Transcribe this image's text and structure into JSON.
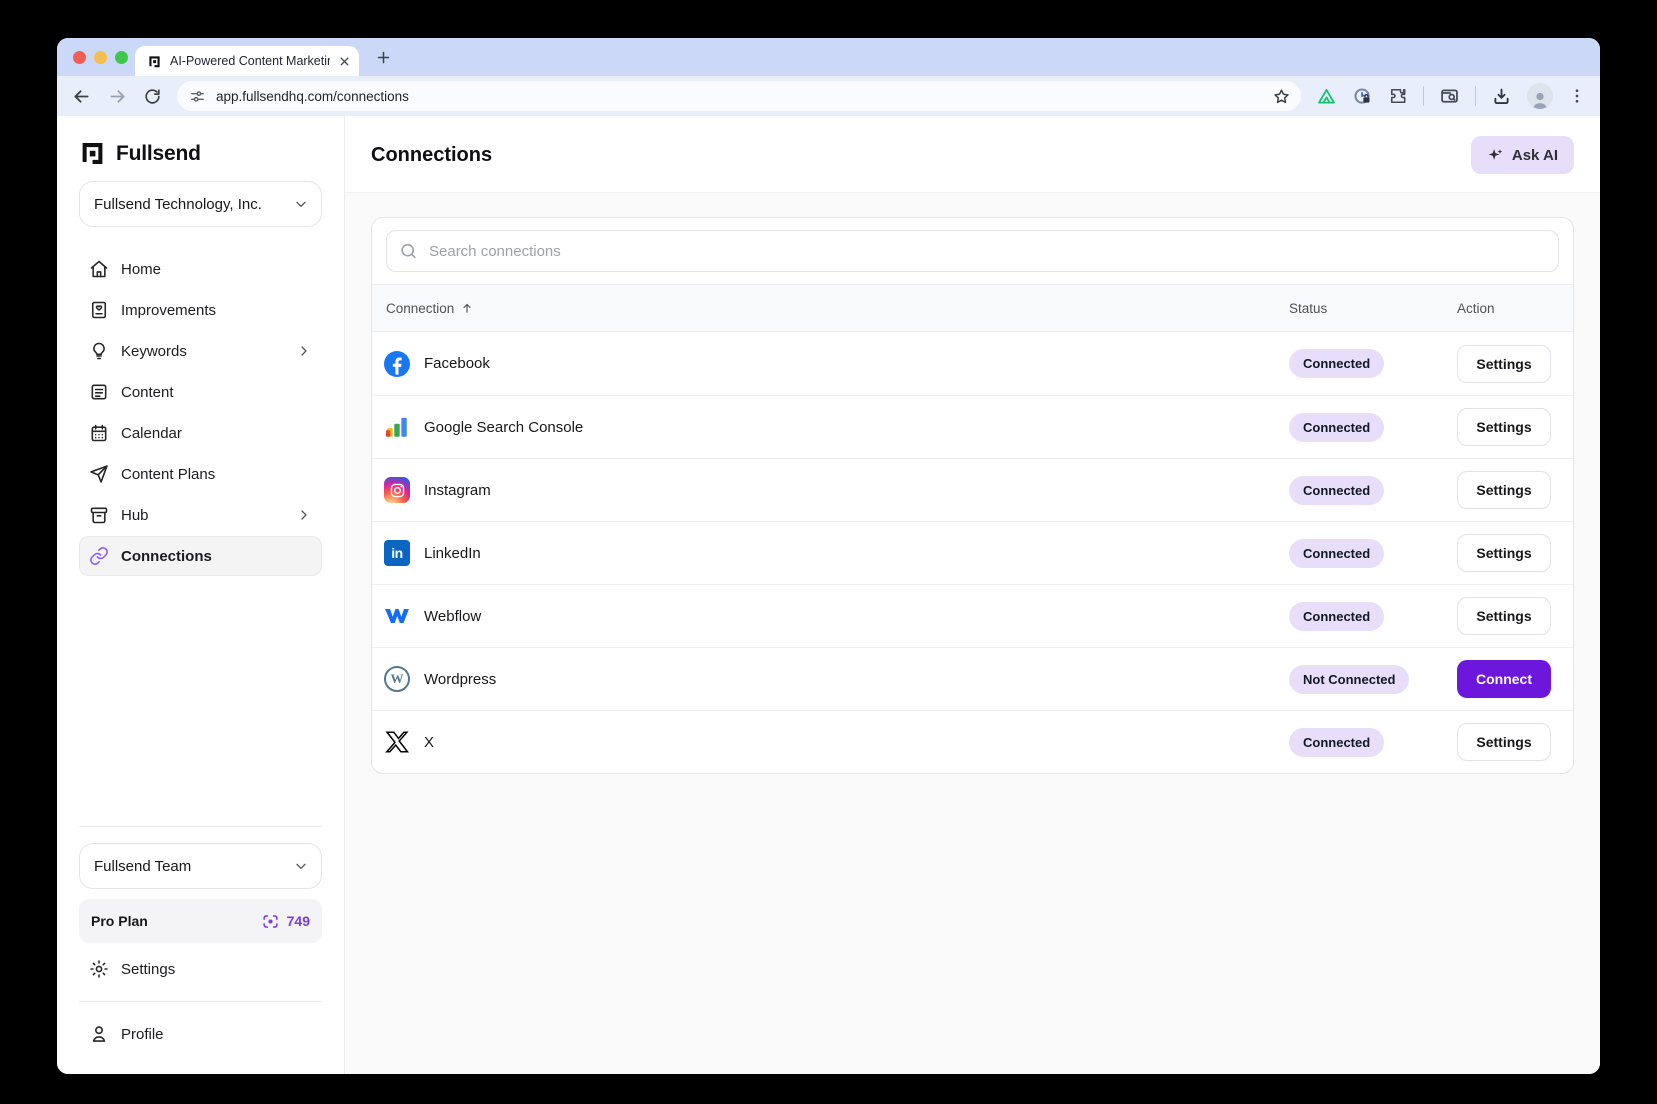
{
  "browser": {
    "tab_title": "AI-Powered Content Marketin",
    "url": "app.fullsendhq.com/connections"
  },
  "sidebar": {
    "brand": "Fullsend",
    "org_selector": "Fullsend Technology, Inc.",
    "nav": [
      {
        "label": "Home",
        "icon": "home-icon",
        "chevron": false,
        "active": false
      },
      {
        "label": "Improvements",
        "icon": "improvements-icon",
        "chevron": false,
        "active": false
      },
      {
        "label": "Keywords",
        "icon": "lightbulb-icon",
        "chevron": true,
        "active": false
      },
      {
        "label": "Content",
        "icon": "document-icon",
        "chevron": false,
        "active": false
      },
      {
        "label": "Calendar",
        "icon": "calendar-icon",
        "chevron": false,
        "active": false
      },
      {
        "label": "Content Plans",
        "icon": "send-icon",
        "chevron": false,
        "active": false
      },
      {
        "label": "Hub",
        "icon": "hub-icon",
        "chevron": true,
        "active": false
      },
      {
        "label": "Connections",
        "icon": "link-icon",
        "chevron": false,
        "active": true
      }
    ],
    "team_selector": "Fullsend Team",
    "plan": {
      "label": "Pro Plan",
      "credits_icon": "credits-icon",
      "credits": "749"
    },
    "settings_label": "Settings",
    "profile_label": "Profile"
  },
  "main": {
    "title": "Connections",
    "ask_ai_label": "Ask AI",
    "search_placeholder": "Search connections",
    "table": {
      "headers": {
        "connection": "Connection",
        "status": "Status",
        "action": "Action"
      },
      "sort": "ascending",
      "rows": [
        {
          "name": "Facebook",
          "icon": "facebook-icon",
          "status": "Connected",
          "action": "Settings"
        },
        {
          "name": "Google Search Console",
          "icon": "google-search-console-icon",
          "status": "Connected",
          "action": "Settings"
        },
        {
          "name": "Instagram",
          "icon": "instagram-icon",
          "status": "Connected",
          "action": "Settings"
        },
        {
          "name": "LinkedIn",
          "icon": "linkedin-icon",
          "status": "Connected",
          "action": "Settings"
        },
        {
          "name": "Webflow",
          "icon": "webflow-icon",
          "status": "Connected",
          "action": "Settings"
        },
        {
          "name": "Wordpress",
          "icon": "wordpress-icon",
          "status": "Not Connected",
          "action": "Connect"
        },
        {
          "name": "X",
          "icon": "x-icon",
          "status": "Connected",
          "action": "Settings"
        }
      ]
    }
  },
  "colors": {
    "accent_purple": "#6d17dd",
    "badge_bg": "#e9def9",
    "ask_ai_bg": "#e7def9",
    "active_link_icon": "#8b5cf6",
    "credits_text": "#7c3aed",
    "tabstrip_bg": "#cbd8f7",
    "toolbar_bg": "#e9eefb"
  }
}
